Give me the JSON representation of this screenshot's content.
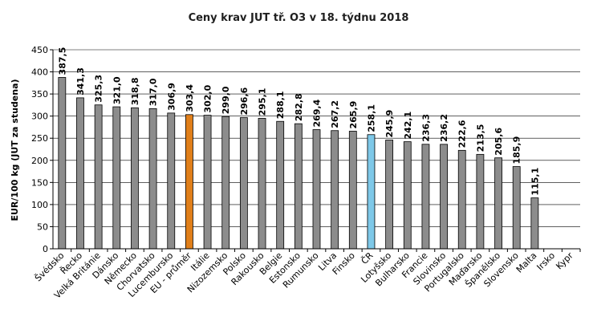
{
  "chart_data": {
    "type": "bar",
    "title": "Ceny krav JUT  tř. O3  v 18. týdnu 2018",
    "ylabel": "EUR/100 kg (JUT za studena)",
    "xlabel": "",
    "ylim": [
      0,
      450
    ],
    "yticks": [
      "0",
      "50",
      "100",
      "150",
      "200",
      "250",
      "300",
      "350",
      "400",
      "450"
    ],
    "grid": true,
    "categories": [
      "Švédsko",
      "Řecko",
      "Velká Británie",
      "Dánsko",
      "Německo",
      "Chorvatsko",
      "Lucembursko",
      "EU - průměr",
      "Itálie",
      "Nizozemsko",
      "Polsko",
      "Rakousko",
      "Belgie",
      "Estonsko",
      "Rumunsko",
      "Litva",
      "Finsko",
      "ČR",
      "Lotyšsko",
      "Bulharsko",
      "Francie",
      "Slovinsko",
      "Portugalsko",
      "Maďarsko",
      "Španělsko",
      "Slovensko",
      "Malta",
      "Irsko",
      "Kypr"
    ],
    "values": [
      387.5,
      341.3,
      325.3,
      321.0,
      318.8,
      317.0,
      306.9,
      303.4,
      302.0,
      299.0,
      296.6,
      295.1,
      288.1,
      282.8,
      269.4,
      267.2,
      265.9,
      258.1,
      245.9,
      242.1,
      236.3,
      236.2,
      222.6,
      213.5,
      205.6,
      185.9,
      115.1,
      null,
      null
    ],
    "labels": [
      "387,5",
      "341,3",
      "325,3",
      "321,0",
      "318,8",
      "317,0",
      "306,9",
      "303,4",
      "302,0",
      "299,0",
      "296,6",
      "295,1",
      "288,1",
      "282,8",
      "269,4",
      "267,2",
      "265,9",
      "258,1",
      "245,9",
      "242,1",
      "236,3",
      "236,2",
      "222,6",
      "213,5",
      "205,6",
      "185,9",
      "115,1",
      "",
      ""
    ],
    "colors": {
      "default": "#8c8c8c",
      "highlight_eu": "#e07f1a",
      "highlight_cr": "#7ec8e8"
    },
    "highlight": {
      "EU - průměr": "highlight_eu",
      "ČR": "highlight_cr"
    }
  }
}
